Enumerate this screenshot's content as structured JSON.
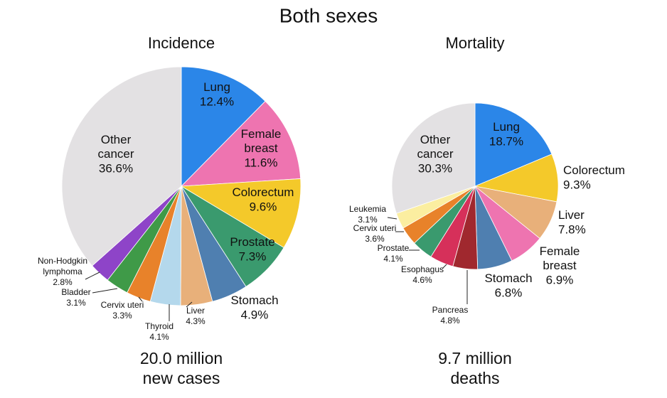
{
  "title": "Both sexes",
  "chart_data": [
    {
      "type": "pie",
      "subtitle": "Incidence",
      "caption": "20.0 million new cases",
      "categories": [
        "Lung",
        "Female breast",
        "Colorectum",
        "Prostate",
        "Stomach",
        "Liver",
        "Thyroid",
        "Cervix uteri",
        "Bladder",
        "Non-Hodgkin lymphoma",
        "Other cancer"
      ],
      "values": [
        12.4,
        11.6,
        9.6,
        7.3,
        4.9,
        4.3,
        4.1,
        3.3,
        3.1,
        2.8,
        36.6
      ],
      "value_labels": [
        "12.4%",
        "11.6%",
        "9.6%",
        "7.3%",
        "4.9%",
        "4.3%",
        "4.1%",
        "3.3%",
        "3.1%",
        "2.8%",
        "36.6%"
      ],
      "colors": [
        "#2b86e8",
        "#ee74b0",
        "#f4c92a",
        "#3a9a6e",
        "#4f7fb0",
        "#e8b07a",
        "#b4d8ec",
        "#e8822a",
        "#3f9a48",
        "#8e44c8",
        "#e3e1e3"
      ]
    },
    {
      "type": "pie",
      "subtitle": "Mortality",
      "caption": "9.7 million deaths",
      "categories": [
        "Lung",
        "Colorectum",
        "Liver",
        "Female breast",
        "Stomach",
        "Pancreas",
        "Esophagus",
        "Prostate",
        "Cervix uteri",
        "Leukemia",
        "Other cancer"
      ],
      "values": [
        18.7,
        9.3,
        7.8,
        6.9,
        6.8,
        4.8,
        4.6,
        4.1,
        3.6,
        3.1,
        30.3
      ],
      "value_labels": [
        "18.7%",
        "9.3%",
        "7.8%",
        "6.9%",
        "6.8%",
        "4.8%",
        "4.6%",
        "4.1%",
        "3.6%",
        "3.1%",
        "30.3%"
      ],
      "colors": [
        "#2b86e8",
        "#f4c92a",
        "#e8b07a",
        "#ee74b0",
        "#4f7fb0",
        "#a0282e",
        "#d6305a",
        "#3a9a6e",
        "#e8822a",
        "#fbeea0",
        "#e3e1e3"
      ]
    }
  ]
}
